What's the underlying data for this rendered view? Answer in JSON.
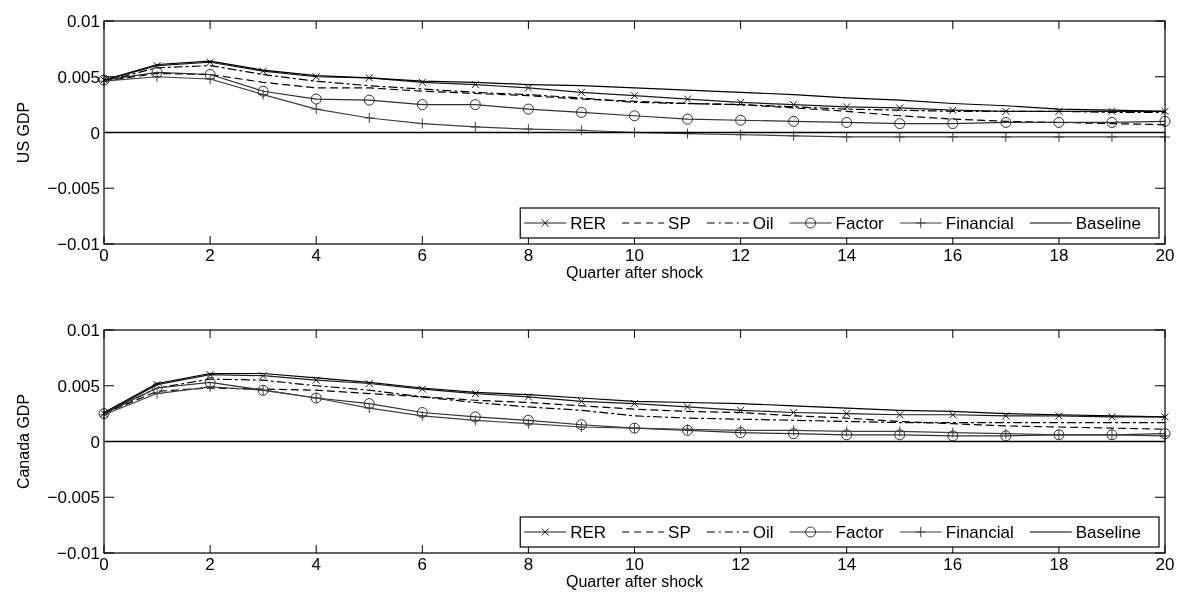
{
  "chart_data": [
    {
      "type": "line",
      "ylabel": "US GDP",
      "xlabel": "Quarter after shock",
      "x": [
        0,
        1,
        2,
        3,
        4,
        5,
        6,
        7,
        8,
        9,
        10,
        11,
        12,
        13,
        14,
        15,
        16,
        17,
        18,
        19,
        20
      ],
      "xlim": [
        0,
        20
      ],
      "xticks": [
        0,
        2,
        4,
        6,
        8,
        10,
        12,
        14,
        16,
        18,
        20
      ],
      "ylim": [
        -0.01,
        0.01
      ],
      "yticks": [
        -0.01,
        -0.005,
        0,
        0.005,
        0.01
      ],
      "legend": "bottom right",
      "grid": false,
      "ref_lines": [
        {
          "axis": "y",
          "value": 0,
          "color": "#000000"
        }
      ],
      "series": [
        {
          "name": "RER",
          "color": "#1a1a1a",
          "marker": "cross",
          "line_style": "solid",
          "values": [
            0.0047,
            0.006,
            0.0063,
            0.0055,
            0.005,
            0.0049,
            0.0045,
            0.0043,
            0.004,
            0.0036,
            0.0033,
            0.003,
            0.0027,
            0.0025,
            0.0023,
            0.0022,
            0.002,
            0.0019,
            0.0019,
            0.0019,
            0.0019
          ]
        },
        {
          "name": "SP",
          "color": "#000000",
          "marker": "none",
          "line_style": "dashed",
          "values": [
            0.0046,
            0.0053,
            0.0052,
            0.0045,
            0.004,
            0.004,
            0.0037,
            0.0035,
            0.0033,
            0.003,
            0.0028,
            0.0026,
            0.0025,
            0.0022,
            0.0019,
            0.0015,
            0.0012,
            0.001,
            0.0009,
            0.0008,
            0.0007
          ]
        },
        {
          "name": "Oil",
          "color": "#000000",
          "marker": "none",
          "line_style": "dashdot",
          "values": [
            0.0046,
            0.0058,
            0.006,
            0.0052,
            0.0046,
            0.0042,
            0.0039,
            0.0036,
            0.0034,
            0.0031,
            0.0027,
            0.0026,
            0.0025,
            0.0023,
            0.0021,
            0.002,
            0.0019,
            0.0019,
            0.0019,
            0.0018,
            0.0018
          ]
        },
        {
          "name": "Factor",
          "color": "#303030",
          "marker": "circle",
          "line_style": "solid",
          "values": [
            0.0047,
            0.0054,
            0.0052,
            0.0037,
            0.003,
            0.0029,
            0.0025,
            0.0025,
            0.0021,
            0.0018,
            0.0015,
            0.0012,
            0.0011,
            0.001,
            0.0009,
            0.0008,
            0.0008,
            0.0009,
            0.0009,
            0.0009,
            0.001
          ]
        },
        {
          "name": "Financial",
          "color": "#404040",
          "marker": "plus",
          "line_style": "solid",
          "values": [
            0.0046,
            0.005,
            0.0048,
            0.0034,
            0.0021,
            0.0013,
            0.0008,
            0.0005,
            0.0003,
            0.0002,
            0,
            -0.0001,
            -0.0002,
            -0.0003,
            -0.0004,
            -0.0004,
            -0.0004,
            -0.0004,
            -0.0004,
            -0.0004,
            -0.0004
          ]
        },
        {
          "name": "Baseline",
          "color": "#000000",
          "marker": "none",
          "line_style": "solid",
          "values": [
            0.0047,
            0.0061,
            0.0064,
            0.0056,
            0.0051,
            0.0049,
            0.0046,
            0.0045,
            0.0043,
            0.0042,
            0.004,
            0.0038,
            0.0036,
            0.0034,
            0.0031,
            0.0029,
            0.0026,
            0.0024,
            0.0021,
            0.002,
            0.0019
          ]
        }
      ]
    },
    {
      "type": "line",
      "ylabel": "Canada GDP",
      "xlabel": "Quarter after shock",
      "x": [
        0,
        1,
        2,
        3,
        4,
        5,
        6,
        7,
        8,
        9,
        10,
        11,
        12,
        13,
        14,
        15,
        16,
        17,
        18,
        19,
        20
      ],
      "xlim": [
        0,
        20
      ],
      "xticks": [
        0,
        2,
        4,
        6,
        8,
        10,
        12,
        14,
        16,
        18,
        20
      ],
      "ylim": [
        -0.01,
        0.01
      ],
      "yticks": [
        -0.01,
        -0.005,
        0,
        0.005,
        0.01
      ],
      "legend": "bottom right",
      "grid": false,
      "ref_lines": [
        {
          "axis": "y",
          "value": 0,
          "color": "#000000"
        }
      ],
      "series": [
        {
          "name": "RER",
          "color": "#1a1a1a",
          "marker": "cross",
          "line_style": "solid",
          "values": [
            0.0025,
            0.0051,
            0.006,
            0.0059,
            0.0055,
            0.0052,
            0.0047,
            0.0043,
            0.004,
            0.0036,
            0.0034,
            0.0031,
            0.0028,
            0.0026,
            0.0025,
            0.0024,
            0.0024,
            0.0023,
            0.0023,
            0.0022,
            0.0022
          ]
        },
        {
          "name": "SP",
          "color": "#000000",
          "marker": "none",
          "line_style": "dashed",
          "values": [
            0.0025,
            0.0045,
            0.0048,
            0.0047,
            0.0046,
            0.0043,
            0.004,
            0.0037,
            0.0035,
            0.0032,
            0.0029,
            0.0027,
            0.0026,
            0.0023,
            0.0021,
            0.0018,
            0.0016,
            0.0014,
            0.0013,
            0.0012,
            0.0011
          ]
        },
        {
          "name": "Oil",
          "color": "#000000",
          "marker": "none",
          "line_style": "dashdot",
          "values": [
            0.0025,
            0.0048,
            0.0056,
            0.0055,
            0.005,
            0.0046,
            0.004,
            0.0035,
            0.0031,
            0.0028,
            0.0023,
            0.0021,
            0.002,
            0.0019,
            0.0018,
            0.0017,
            0.0017,
            0.0017,
            0.0017,
            0.0017,
            0.0017
          ]
        },
        {
          "name": "Factor",
          "color": "#303030",
          "marker": "circle",
          "line_style": "solid",
          "values": [
            0.0025,
            0.0048,
            0.0053,
            0.0046,
            0.0039,
            0.0034,
            0.0026,
            0.0022,
            0.0019,
            0.0015,
            0.0012,
            0.001,
            0.0008,
            0.0007,
            0.0006,
            0.0006,
            0.0005,
            0.0005,
            0.0006,
            0.0006,
            0.0007
          ]
        },
        {
          "name": "Financial",
          "color": "#404040",
          "marker": "plus",
          "line_style": "solid",
          "values": [
            0.0024,
            0.0043,
            0.0049,
            0.0046,
            0.0039,
            0.003,
            0.0023,
            0.0019,
            0.0016,
            0.0013,
            0.0012,
            0.0011,
            0.001,
            0.001,
            0.0009,
            0.0009,
            0.0008,
            0.0007,
            0.0006,
            0.0006,
            0.0005
          ]
        },
        {
          "name": "Baseline",
          "color": "#000000",
          "marker": "none",
          "line_style": "solid",
          "values": [
            0.0026,
            0.0052,
            0.0061,
            0.0061,
            0.0057,
            0.0053,
            0.0048,
            0.0044,
            0.0042,
            0.0039,
            0.0036,
            0.0035,
            0.0034,
            0.0032,
            0.003,
            0.0028,
            0.0027,
            0.0025,
            0.0024,
            0.0023,
            0.0022
          ]
        }
      ]
    }
  ]
}
